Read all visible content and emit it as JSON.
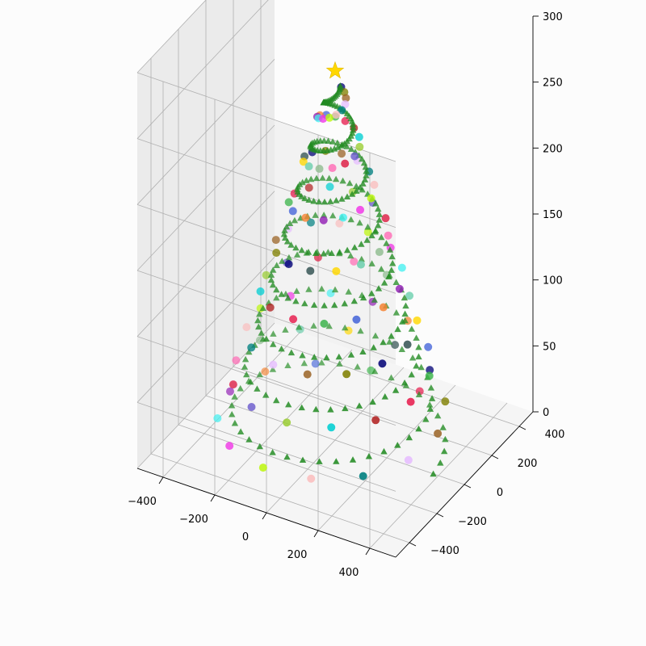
{
  "chart_data": {
    "type": "scatter",
    "projection": "3d",
    "title": "",
    "xlabel": "",
    "ylabel": "",
    "zlabel": "",
    "xlim": [
      -500,
      500
    ],
    "ylim": [
      -500,
      500
    ],
    "zlim": [
      0,
      300
    ],
    "x_ticks": [
      "−400",
      "−200",
      "0",
      "200",
      "400"
    ],
    "y_ticks": [
      "−400",
      "−200",
      "0",
      "200",
      "400"
    ],
    "z_ticks": [
      "0",
      "50",
      "100",
      "150",
      "200",
      "250",
      "300"
    ],
    "x_tick_values": [
      -400,
      -200,
      0,
      200,
      400
    ],
    "y_tick_values": [
      -400,
      -200,
      0,
      200,
      400
    ],
    "z_tick_values": [
      0,
      50,
      100,
      150,
      200,
      250,
      300
    ],
    "grid": true,
    "series": [
      {
        "kind": "tree-spiral",
        "marker": "triangle",
        "color": "#228b22",
        "shape": "conical helix",
        "base_radius": 380,
        "top_radius": 20,
        "z_range": [
          0,
          270
        ],
        "turns": 8,
        "points": 300
      },
      {
        "kind": "ornaments",
        "marker": "circle",
        "shape": "conical helix",
        "base_radius": 420,
        "top_radius": 30,
        "z_range": [
          0,
          265
        ],
        "turns": 8,
        "points": 110,
        "colors": [
          "#e6194b",
          "#3cb44b",
          "#4363d8",
          "#f58231",
          "#911eb4",
          "#46f0f0",
          "#f032e6",
          "#bcf60c",
          "#fabebe",
          "#008080",
          "#e6beff",
          "#9a6324",
          "#808000",
          "#000075",
          "#2f4f4f",
          "#ffd700",
          "#66cdaa",
          "#8fbc8f",
          "#ff69b4",
          "#dc143c",
          "#6a5acd",
          "#9acd32",
          "#00ced1",
          "#b22222"
        ]
      },
      {
        "kind": "star",
        "marker": "star",
        "color": "#ffd700",
        "x": 0,
        "y": 0,
        "z": 280
      }
    ]
  }
}
